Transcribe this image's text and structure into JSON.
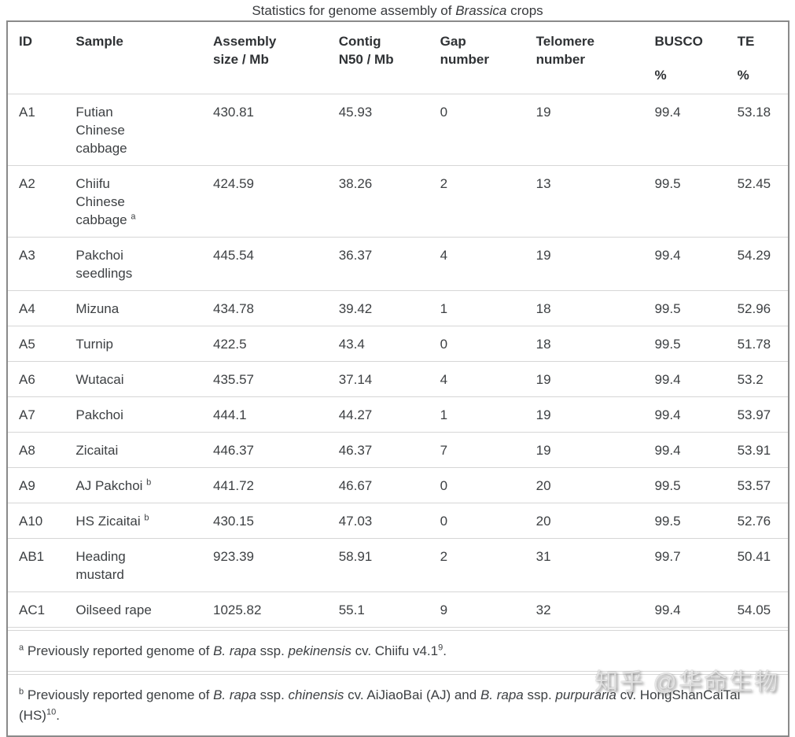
{
  "chart_data": {
    "type": "table",
    "title": "Statistics for genome assembly of Brassica crops",
    "title_parts": [
      {
        "t": "Statistics for genome assembly of "
      },
      {
        "t": "Brassica",
        "s": "i"
      },
      {
        "t": " crops"
      }
    ],
    "columns": [
      "ID",
      "Sample",
      "Assembly size / Mb",
      "Contig N50 / Mb",
      "Gap number",
      "Telomere number",
      "BUSCO %",
      "TE %"
    ],
    "header_display": [
      {
        "l1": "ID"
      },
      {
        "l1": "Sample"
      },
      {
        "l1": "Assembly",
        "l2": "size / Mb"
      },
      {
        "l1": "Contig",
        "l2": "N50 / Mb"
      },
      {
        "l1": "Gap",
        "l2": "number"
      },
      {
        "l1": "Telomere",
        "l2": "number"
      },
      {
        "l1": "BUSCO",
        "pct": "%"
      },
      {
        "l1": "TE",
        "pct": "%"
      }
    ],
    "rows": [
      {
        "id": "A1",
        "sample": "Futian Chinese cabbage",
        "sup": "",
        "assembly": 430.81,
        "contig": 45.93,
        "gap": 0,
        "telomere": 19,
        "busco": 99.4,
        "te": 53.18
      },
      {
        "id": "A2",
        "sample": "Chiifu Chinese cabbage ",
        "sup": "a",
        "assembly": 424.59,
        "contig": 38.26,
        "gap": 2,
        "telomere": 13,
        "busco": 99.5,
        "te": 52.45
      },
      {
        "id": "A3",
        "sample": "Pakchoi seedlings",
        "sup": "",
        "assembly": 445.54,
        "contig": 36.37,
        "gap": 4,
        "telomere": 19,
        "busco": 99.4,
        "te": 54.29
      },
      {
        "id": "A4",
        "sample": "Mizuna",
        "sup": "",
        "assembly": 434.78,
        "contig": 39.42,
        "gap": 1,
        "telomere": 18,
        "busco": 99.5,
        "te": 52.96
      },
      {
        "id": "A5",
        "sample": "Turnip",
        "sup": "",
        "assembly": 422.5,
        "contig": 43.4,
        "gap": 0,
        "telomere": 18,
        "busco": 99.5,
        "te": 51.78
      },
      {
        "id": "A6",
        "sample": "Wutacai",
        "sup": "",
        "assembly": 435.57,
        "contig": 37.14,
        "gap": 4,
        "telomere": 19,
        "busco": 99.4,
        "te": 53.2
      },
      {
        "id": "A7",
        "sample": "Pakchoi",
        "sup": "",
        "assembly": 444.1,
        "contig": 44.27,
        "gap": 1,
        "telomere": 19,
        "busco": 99.4,
        "te": 53.97
      },
      {
        "id": "A8",
        "sample": "Zicaitai",
        "sup": "",
        "assembly": 446.37,
        "contig": 46.37,
        "gap": 7,
        "telomere": 19,
        "busco": 99.4,
        "te": 53.91
      },
      {
        "id": "A9",
        "sample": "AJ Pakchoi ",
        "sup": "b",
        "assembly": 441.72,
        "contig": 46.67,
        "gap": 0,
        "telomere": 20,
        "busco": 99.5,
        "te": 53.57
      },
      {
        "id": "A10",
        "sample": "HS Zicaitai ",
        "sup": "b",
        "assembly": 430.15,
        "contig": 47.03,
        "gap": 0,
        "telomere": 20,
        "busco": 99.5,
        "te": 52.76
      },
      {
        "id": "AB1",
        "sample": "Heading mustard",
        "sup": "",
        "assembly": 923.39,
        "contig": 58.91,
        "gap": 2,
        "telomere": 31,
        "busco": 99.7,
        "te": 50.41
      },
      {
        "id": "AC1",
        "sample": "Oilseed rape",
        "sup": "",
        "assembly": 1025.82,
        "contig": 55.1,
        "gap": 9,
        "telomere": 32,
        "busco": 99.4,
        "te": 54.05
      }
    ],
    "footnotes": [
      [
        {
          "t": "a",
          "s": "sup"
        },
        {
          "t": " Previously reported genome of "
        },
        {
          "t": "B. rapa",
          "s": "i"
        },
        {
          "t": " ssp. "
        },
        {
          "t": "pekinensis",
          "s": "i"
        },
        {
          "t": " cv. Chiifu v4.1"
        },
        {
          "t": "9",
          "s": "sup"
        },
        {
          "t": "."
        }
      ],
      [
        {
          "t": "b",
          "s": "sup"
        },
        {
          "t": " Previously reported genome of "
        },
        {
          "t": "B. rapa",
          "s": "i"
        },
        {
          "t": " ssp. "
        },
        {
          "t": "chinensis",
          "s": "i"
        },
        {
          "t": " cv. AiJiaoBai (AJ) and "
        },
        {
          "t": "B. rapa",
          "s": "i"
        },
        {
          "t": " ssp. "
        },
        {
          "t": "purpuraria",
          "s": "i"
        },
        {
          "t": " cv. HongShanCaiTai (HS)"
        },
        {
          "t": "10",
          "s": "sup"
        },
        {
          "t": "."
        }
      ]
    ],
    "layout": {
      "grid": "horizontal row separators only",
      "header_align": "left",
      "cell_align": "left"
    }
  },
  "watermark": "知乎 @华命生物",
  "colors": {
    "text": "#3d4043",
    "outer_border": "#8a8a8a",
    "row_separator": "#d6d6d6",
    "background": "#ffffff"
  }
}
